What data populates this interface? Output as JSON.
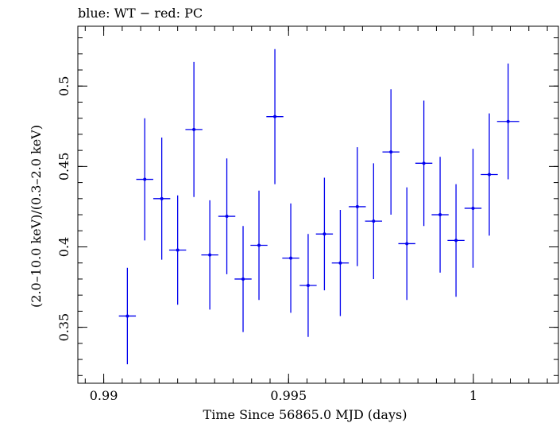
{
  "chart_data": {
    "type": "scatter",
    "title": "blue: WT − red: PC",
    "xlabel": "Time Since 56865.0 MJD (days)",
    "ylabel": "(2.0–10.0 keV)/(0.3–2.0 keV)",
    "xlim": [
      0.9893,
      1.0023
    ],
    "ylim": [
      0.3152,
      0.5372
    ],
    "x_ticks": [
      {
        "value": 0.99,
        "label": "0.99"
      },
      {
        "value": 0.995,
        "label": "0.995"
      },
      {
        "value": 1.0,
        "label": "1"
      }
    ],
    "y_ticks": [
      {
        "value": 0.35,
        "label": "0.35"
      },
      {
        "value": 0.4,
        "label": "0.4"
      },
      {
        "value": 0.45,
        "label": "0.45"
      },
      {
        "value": 0.5,
        "label": "0.5"
      }
    ],
    "grid": false,
    "series": [
      {
        "color": "#0000ee",
        "points": [
          {
            "x": 0.99064,
            "xerr": 0.00023,
            "y": 0.357,
            "yerr_low": 0.03,
            "yerr_high": 0.03
          },
          {
            "x": 0.99111,
            "xerr": 0.00023,
            "y": 0.442,
            "yerr_low": 0.038,
            "yerr_high": 0.038
          },
          {
            "x": 0.99157,
            "xerr": 0.00023,
            "y": 0.43,
            "yerr_low": 0.038,
            "yerr_high": 0.038
          },
          {
            "x": 0.992,
            "xerr": 0.00023,
            "y": 0.398,
            "yerr_low": 0.034,
            "yerr_high": 0.034
          },
          {
            "x": 0.99244,
            "xerr": 0.00023,
            "y": 0.473,
            "yerr_low": 0.042,
            "yerr_high": 0.042
          },
          {
            "x": 0.99287,
            "xerr": 0.00023,
            "y": 0.395,
            "yerr_low": 0.034,
            "yerr_high": 0.034
          },
          {
            "x": 0.99333,
            "xerr": 0.00023,
            "y": 0.419,
            "yerr_low": 0.036,
            "yerr_high": 0.036
          },
          {
            "x": 0.99377,
            "xerr": 0.00023,
            "y": 0.38,
            "yerr_low": 0.033,
            "yerr_high": 0.033
          },
          {
            "x": 0.9942,
            "xerr": 0.00023,
            "y": 0.401,
            "yerr_low": 0.034,
            "yerr_high": 0.034
          },
          {
            "x": 0.99463,
            "xerr": 0.00023,
            "y": 0.481,
            "yerr_low": 0.042,
            "yerr_high": 0.042
          },
          {
            "x": 0.99506,
            "xerr": 0.00023,
            "y": 0.393,
            "yerr_low": 0.034,
            "yerr_high": 0.034
          },
          {
            "x": 0.99553,
            "xerr": 0.00023,
            "y": 0.376,
            "yerr_low": 0.032,
            "yerr_high": 0.032
          },
          {
            "x": 0.99597,
            "xerr": 0.00023,
            "y": 0.408,
            "yerr_low": 0.035,
            "yerr_high": 0.035
          },
          {
            "x": 0.9964,
            "xerr": 0.00023,
            "y": 0.39,
            "yerr_low": 0.033,
            "yerr_high": 0.033
          },
          {
            "x": 0.99686,
            "xerr": 0.00023,
            "y": 0.425,
            "yerr_low": 0.037,
            "yerr_high": 0.037
          },
          {
            "x": 0.9973,
            "xerr": 0.00023,
            "y": 0.416,
            "yerr_low": 0.036,
            "yerr_high": 0.036
          },
          {
            "x": 0.99777,
            "xerr": 0.00023,
            "y": 0.459,
            "yerr_low": 0.039,
            "yerr_high": 0.039
          },
          {
            "x": 0.9982,
            "xerr": 0.00023,
            "y": 0.402,
            "yerr_low": 0.035,
            "yerr_high": 0.035
          },
          {
            "x": 0.99866,
            "xerr": 0.00023,
            "y": 0.452,
            "yerr_low": 0.039,
            "yerr_high": 0.039
          },
          {
            "x": 0.9991,
            "xerr": 0.00023,
            "y": 0.42,
            "yerr_low": 0.036,
            "yerr_high": 0.036
          },
          {
            "x": 0.99953,
            "xerr": 0.00023,
            "y": 0.404,
            "yerr_low": 0.035,
            "yerr_high": 0.035
          },
          {
            "x": 0.99999,
            "xerr": 0.00023,
            "y": 0.424,
            "yerr_low": 0.037,
            "yerr_high": 0.037
          },
          {
            "x": 1.00043,
            "xerr": 0.00023,
            "y": 0.445,
            "yerr_low": 0.038,
            "yerr_high": 0.038
          },
          {
            "x": 1.00094,
            "xerr": 0.0003,
            "y": 0.478,
            "yerr_low": 0.036,
            "yerr_high": 0.036
          }
        ]
      }
    ]
  }
}
